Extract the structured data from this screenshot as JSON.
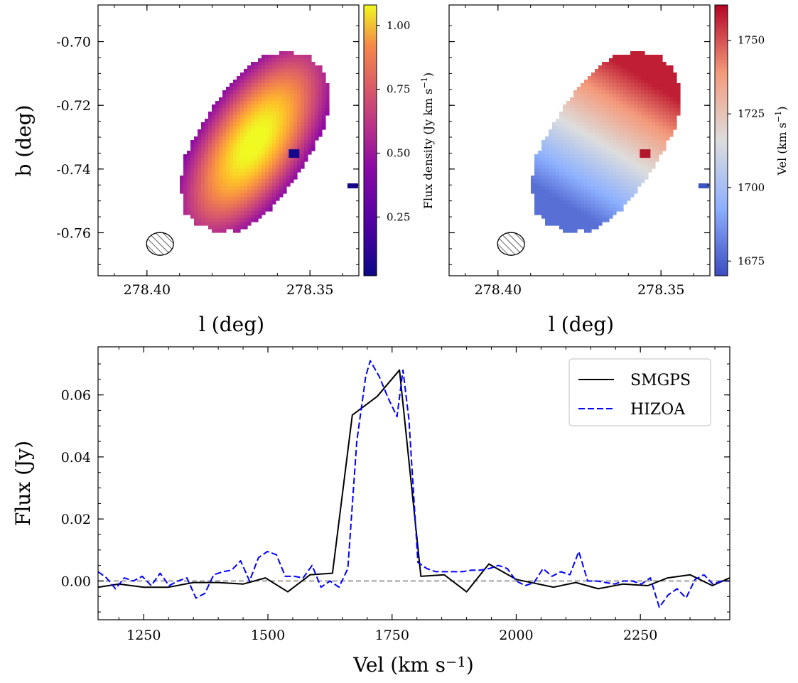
{
  "figure": {
    "colors": {
      "smgps": "#000000",
      "hizoa": "#0000ff",
      "zero_line": "#888888",
      "velocity_red": "#b2182b",
      "velocity_grey": "#dddddd",
      "velocity_blue": "#3a55c0",
      "flux_dark": "#1a0a7a",
      "flux_bright": "#fcd84a"
    }
  },
  "chart_data": [
    {
      "id": "moment0",
      "type": "heatmap",
      "title": "",
      "xlabel": "l (deg)",
      "ylabel": "b (deg)",
      "xlim": [
        278.415,
        278.335
      ],
      "ylim": [
        -0.7735,
        -0.6885
      ],
      "xticks": [
        278.4,
        278.35
      ],
      "xtick_labels": [
        "278.40",
        "278.35"
      ],
      "yticks": [
        -0.7,
        -0.72,
        -0.74,
        -0.76
      ],
      "ytick_labels": [
        "-0.70",
        "-0.72",
        "-0.74",
        "-0.76"
      ],
      "colorbar": {
        "label": "Flux density (Jy km s−1)",
        "range": [
          0.02,
          1.08
        ],
        "ticks": [
          0.25,
          0.5,
          0.75,
          1.0
        ],
        "tick_labels": [
          "0.25",
          "0.50",
          "0.75",
          "1.00"
        ],
        "colormap": "plasma"
      },
      "source": {
        "center_l": 278.367,
        "center_b": -0.7315,
        "peak": 1.08
      },
      "beam": {
        "l": 278.396,
        "b": -0.7635
      }
    },
    {
      "id": "moment1",
      "type": "heatmap",
      "title": "",
      "xlabel": "l (deg)",
      "ylabel": "",
      "xlim": [
        278.415,
        278.335
      ],
      "ylim": [
        -0.7735,
        -0.6885
      ],
      "xticks": [
        278.4,
        278.35
      ],
      "xtick_labels": [
        "278.40",
        "278.35"
      ],
      "colorbar": {
        "label": "Vel (km s−1)",
        "range": [
          1670,
          1762
        ],
        "ticks": [
          1675,
          1700,
          1725,
          1750
        ],
        "tick_labels": [
          "1675",
          "1700",
          "1725",
          "1750"
        ],
        "colormap": "coolwarm"
      },
      "velocity_range": [
        1678,
        1758
      ],
      "beam": {
        "l": 278.396,
        "b": -0.7635
      }
    },
    {
      "id": "spectrum",
      "type": "line",
      "title": "",
      "xlabel": "Vel (km s−1)",
      "ylabel": "Flux (Jy)",
      "xlim": [
        1158,
        2430
      ],
      "ylim": [
        -0.0125,
        0.0755
      ],
      "xticks": [
        1250,
        1500,
        1750,
        2000,
        2250
      ],
      "xtick_labels": [
        "1250",
        "1500",
        "1750",
        "2000",
        "2250"
      ],
      "yticks": [
        0.0,
        0.02,
        0.04,
        0.06
      ],
      "ytick_labels": [
        "0.00",
        "0.02",
        "0.04",
        "0.06"
      ],
      "legend_position": "top-right",
      "series": [
        {
          "name": "SMGPS",
          "style": "solid",
          "x": [
            1158,
            1200,
            1250,
            1300,
            1350,
            1400,
            1450,
            1495,
            1540,
            1585,
            1630,
            1670,
            1720,
            1765,
            1808,
            1855,
            1900,
            1945,
            2000,
            2075,
            2120,
            2165,
            2215,
            2265,
            2305,
            2350,
            2395,
            2430
          ],
          "values": [
            -0.002,
            -0.001,
            -0.002,
            -0.002,
            -0.0005,
            -0.0005,
            -0.001,
            0.001,
            -0.0035,
            0.002,
            0.0025,
            0.0535,
            0.0595,
            0.068,
            0.0015,
            0.002,
            -0.0035,
            0.0055,
            0.0005,
            -0.002,
            -0.0005,
            -0.0025,
            -0.001,
            -0.0015,
            0.001,
            0.002,
            -0.0015,
            0.001
          ]
        },
        {
          "name": "HIZOA",
          "style": "dashed",
          "x": [
            1158,
            1175,
            1193,
            1211,
            1229,
            1247,
            1265,
            1283,
            1301,
            1319,
            1337,
            1355,
            1373,
            1391,
            1409,
            1427,
            1445,
            1463,
            1481,
            1499,
            1517,
            1535,
            1553,
            1571,
            1589,
            1607,
            1625,
            1643,
            1661,
            1679,
            1697,
            1706,
            1724,
            1742,
            1760,
            1772,
            1784,
            1802,
            1820,
            1838,
            1856,
            1874,
            1892,
            1910,
            1928,
            1946,
            1964,
            1982,
            2000,
            2018,
            2036,
            2054,
            2072,
            2090,
            2108,
            2126,
            2144,
            2162,
            2180,
            2198,
            2216,
            2234,
            2252,
            2270,
            2288,
            2306,
            2324,
            2342,
            2360,
            2378,
            2396,
            2414,
            2430
          ],
          "values": [
            0.003,
            0.001,
            -0.0025,
            0.001,
            0.0,
            0.0015,
            -0.0015,
            0.0025,
            -0.0015,
            0.0,
            0.001,
            -0.0055,
            -0.004,
            0.002,
            0.003,
            0.0035,
            0.0065,
            0.0,
            0.0075,
            0.0095,
            0.0085,
            0.0015,
            0.0015,
            0.001,
            0.005,
            -0.002,
            0.0,
            -0.002,
            0.004,
            0.045,
            0.066,
            0.071,
            0.066,
            0.059,
            0.053,
            0.068,
            0.052,
            0.006,
            0.004,
            0.003,
            0.003,
            0.003,
            0.003,
            0.0035,
            0.0035,
            0.004,
            0.005,
            0.004,
            0.0,
            -0.0015,
            -0.0005,
            0.004,
            0.0015,
            0.003,
            0.002,
            0.0095,
            0.0,
            0.0,
            -0.0005,
            -0.001,
            0.0,
            0.0,
            -0.001,
            0.001,
            -0.0085,
            -0.0045,
            -0.0025,
            -0.0055,
            0.0005,
            0.002,
            -0.001,
            0.0,
            0.0
          ]
        }
      ]
    }
  ]
}
